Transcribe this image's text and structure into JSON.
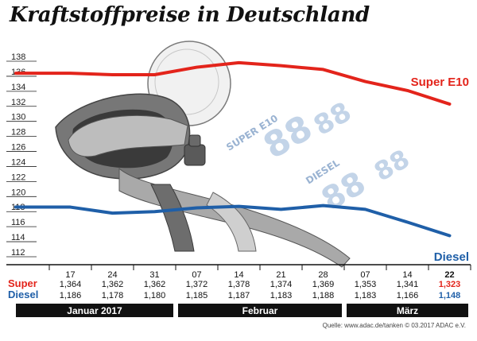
{
  "title": "Kraftstoffpreise in Deutschland",
  "source": "Quelle: www.adac.de/tanken  © 03.2017  ADAC e.V.",
  "illustration": {
    "tag_e10": "SUPER E10",
    "tag_diesel": "DIESEL"
  },
  "chart_data": {
    "type": "line",
    "title": "Kraftstoffpreise in Deutschland",
    "x": [
      "17",
      "24",
      "31",
      "07",
      "14",
      "21",
      "28",
      "07",
      "14",
      "22"
    ],
    "months": [
      {
        "label": "Januar 2017",
        "from": 0,
        "to": 2
      },
      {
        "label": "Februar",
        "from": 3,
        "to": 6
      },
      {
        "label": "März",
        "from": 7,
        "to": 9
      }
    ],
    "ylim": [
      112,
      138
    ],
    "yticks": [
      112,
      114,
      116,
      118,
      120,
      122,
      124,
      126,
      128,
      130,
      132,
      134,
      136,
      138
    ],
    "series": [
      {
        "name": "Super E10",
        "row_label": "Super",
        "color": "#e3241b",
        "values": [
          136.4,
          136.2,
          136.2,
          137.2,
          137.8,
          137.4,
          136.9,
          135.3,
          134.1,
          132.3
        ],
        "table_values": [
          "1,364",
          "1,362",
          "1,362",
          "1,372",
          "1,378",
          "1,374",
          "1,369",
          "1,353",
          "1,341",
          "1,323"
        ]
      },
      {
        "name": "Diesel",
        "row_label": "Diesel",
        "color": "#1f5fa8",
        "values": [
          118.6,
          117.8,
          118.0,
          118.5,
          118.7,
          118.3,
          118.8,
          118.3,
          116.6,
          114.8
        ],
        "table_values": [
          "1,186",
          "1,178",
          "1,180",
          "1,185",
          "1,187",
          "1,183",
          "1,188",
          "1,183",
          "1,166",
          "1,148"
        ]
      }
    ],
    "grid": false,
    "legend": "inline-right"
  }
}
